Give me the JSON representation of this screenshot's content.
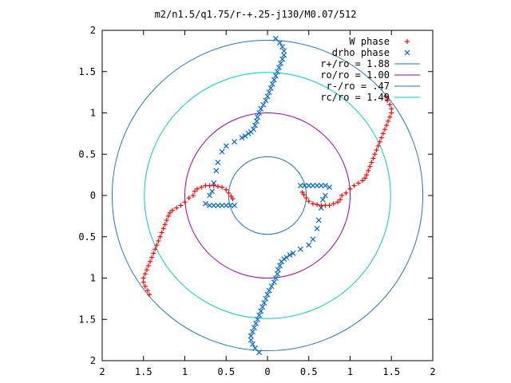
{
  "chart_data": {
    "type": "scatter",
    "title": "m2/n1.5/q1.75/r-+.25-j130/M0.07/512",
    "xlabel": "",
    "ylabel": "",
    "xlim": [
      -2,
      2
    ],
    "ylim": [
      -2,
      2
    ],
    "x_tick_values": [
      -2,
      -1.5,
      -1,
      -0.5,
      0,
      0.5,
      1,
      1.5,
      2
    ],
    "x_tick_labels": [
      "2",
      "1.5",
      "1",
      "0.5",
      "0",
      "0.5",
      "1",
      "1.5",
      "2"
    ],
    "y_tick_values": [
      2,
      1.5,
      1,
      0.5,
      0,
      -0.5,
      -1,
      -1.5,
      -2
    ],
    "y_tick_labels": [
      "2",
      "1.5",
      "1",
      "0.5",
      "0",
      "0.5",
      "1",
      "1.5",
      "2"
    ],
    "grid": false,
    "legend_position": "top-right",
    "series": [
      {
        "name": "W phase",
        "marker": "plus",
        "color": "#ff0000",
        "points": [
          [
            -0.9,
            0.0
          ],
          [
            -0.88,
            0.05
          ],
          [
            -0.85,
            0.08
          ],
          [
            -0.8,
            0.1
          ],
          [
            -0.75,
            0.12
          ],
          [
            -0.7,
            0.12
          ],
          [
            -0.65,
            0.12
          ],
          [
            -0.6,
            0.11
          ],
          [
            -0.55,
            0.1
          ],
          [
            -0.5,
            0.07
          ],
          [
            -0.47,
            0.03
          ],
          [
            -0.44,
            -0.01
          ],
          [
            -0.42,
            -0.04
          ],
          [
            -0.95,
            -0.03
          ],
          [
            -1.0,
            -0.08
          ],
          [
            -1.05,
            -0.12
          ],
          [
            -1.1,
            -0.15
          ],
          [
            -1.15,
            -0.18
          ],
          [
            -1.18,
            -0.21
          ],
          [
            -1.2,
            -0.25
          ],
          [
            -1.22,
            -0.3
          ],
          [
            -1.24,
            -0.35
          ],
          [
            -1.26,
            -0.4
          ],
          [
            -1.28,
            -0.45
          ],
          [
            -1.3,
            -0.5
          ],
          [
            -1.32,
            -0.55
          ],
          [
            -1.34,
            -0.6
          ],
          [
            -1.36,
            -0.65
          ],
          [
            -1.38,
            -0.7
          ],
          [
            -1.4,
            -0.75
          ],
          [
            -1.42,
            -0.8
          ],
          [
            -1.44,
            -0.85
          ],
          [
            -1.46,
            -0.9
          ],
          [
            -1.48,
            -0.95
          ],
          [
            -1.5,
            -1.0
          ],
          [
            -1.5,
            -1.05
          ],
          [
            -1.48,
            -1.1
          ],
          [
            -1.45,
            -1.15
          ],
          [
            -1.43,
            -1.2
          ],
          [
            0.9,
            0.0
          ],
          [
            0.88,
            -0.05
          ],
          [
            0.85,
            -0.08
          ],
          [
            0.8,
            -0.1
          ],
          [
            0.75,
            -0.12
          ],
          [
            0.7,
            -0.12
          ],
          [
            0.65,
            -0.12
          ],
          [
            0.6,
            -0.11
          ],
          [
            0.55,
            -0.1
          ],
          [
            0.5,
            -0.07
          ],
          [
            0.47,
            -0.03
          ],
          [
            0.44,
            0.01
          ],
          [
            0.42,
            0.04
          ],
          [
            0.95,
            0.03
          ],
          [
            1.0,
            0.08
          ],
          [
            1.05,
            0.12
          ],
          [
            1.1,
            0.15
          ],
          [
            1.15,
            0.18
          ],
          [
            1.18,
            0.21
          ],
          [
            1.2,
            0.25
          ],
          [
            1.22,
            0.3
          ],
          [
            1.24,
            0.35
          ],
          [
            1.26,
            0.4
          ],
          [
            1.28,
            0.45
          ],
          [
            1.3,
            0.5
          ],
          [
            1.32,
            0.55
          ],
          [
            1.34,
            0.6
          ],
          [
            1.36,
            0.65
          ],
          [
            1.38,
            0.7
          ],
          [
            1.4,
            0.75
          ],
          [
            1.42,
            0.8
          ],
          [
            1.44,
            0.85
          ],
          [
            1.46,
            0.9
          ],
          [
            1.48,
            0.95
          ],
          [
            1.5,
            1.0
          ],
          [
            1.5,
            1.05
          ],
          [
            1.48,
            1.1
          ],
          [
            1.45,
            1.15
          ],
          [
            1.43,
            1.2
          ]
        ]
      },
      {
        "name": "drho phase",
        "marker": "x",
        "color": "#0066cc",
        "points": [
          [
            0.1,
            1.9
          ],
          [
            0.15,
            1.85
          ],
          [
            0.18,
            1.8
          ],
          [
            0.2,
            1.75
          ],
          [
            0.2,
            1.7
          ],
          [
            0.18,
            1.65
          ],
          [
            0.16,
            1.6
          ],
          [
            0.14,
            1.55
          ],
          [
            0.12,
            1.5
          ],
          [
            0.1,
            1.45
          ],
          [
            0.08,
            1.4
          ],
          [
            0.06,
            1.35
          ],
          [
            0.04,
            1.3
          ],
          [
            0.02,
            1.25
          ],
          [
            0.0,
            1.2
          ],
          [
            -0.02,
            1.15
          ],
          [
            -0.05,
            1.1
          ],
          [
            -0.08,
            1.05
          ],
          [
            -0.1,
            1.0
          ],
          [
            -0.12,
            0.95
          ],
          [
            -0.13,
            0.9
          ],
          [
            -0.15,
            0.85
          ],
          [
            -0.17,
            0.8
          ],
          [
            -0.2,
            0.77
          ],
          [
            -0.23,
            0.75
          ],
          [
            -0.27,
            0.72
          ],
          [
            -0.31,
            0.7
          ],
          [
            -0.4,
            0.65
          ],
          [
            -0.5,
            0.6
          ],
          [
            -0.55,
            0.53
          ],
          [
            -0.6,
            0.4
          ],
          [
            -0.62,
            0.3
          ],
          [
            -0.65,
            0.15
          ],
          [
            -0.67,
            0.05
          ],
          [
            -0.7,
            0.0
          ],
          [
            -0.75,
            -0.1
          ],
          [
            -0.7,
            -0.12
          ],
          [
            -0.65,
            -0.12
          ],
          [
            -0.6,
            -0.12
          ],
          [
            -0.55,
            -0.12
          ],
          [
            -0.5,
            -0.12
          ],
          [
            -0.45,
            -0.12
          ],
          [
            -0.4,
            -0.12
          ],
          [
            -0.1,
            -1.9
          ],
          [
            -0.15,
            -1.85
          ],
          [
            -0.18,
            -1.8
          ],
          [
            -0.2,
            -1.75
          ],
          [
            -0.2,
            -1.7
          ],
          [
            -0.18,
            -1.65
          ],
          [
            -0.16,
            -1.6
          ],
          [
            -0.14,
            -1.55
          ],
          [
            -0.12,
            -1.5
          ],
          [
            -0.1,
            -1.45
          ],
          [
            -0.08,
            -1.4
          ],
          [
            -0.06,
            -1.35
          ],
          [
            -0.04,
            -1.3
          ],
          [
            -0.02,
            -1.25
          ],
          [
            0.0,
            -1.2
          ],
          [
            0.02,
            -1.15
          ],
          [
            0.05,
            -1.1
          ],
          [
            0.08,
            -1.05
          ],
          [
            0.1,
            -1.0
          ],
          [
            0.12,
            -0.95
          ],
          [
            0.13,
            -0.9
          ],
          [
            0.15,
            -0.85
          ],
          [
            0.17,
            -0.8
          ],
          [
            0.2,
            -0.77
          ],
          [
            0.23,
            -0.75
          ],
          [
            0.27,
            -0.72
          ],
          [
            0.31,
            -0.7
          ],
          [
            0.4,
            -0.65
          ],
          [
            0.5,
            -0.6
          ],
          [
            0.55,
            -0.53
          ],
          [
            0.6,
            -0.4
          ],
          [
            0.62,
            -0.3
          ],
          [
            0.65,
            -0.15
          ],
          [
            0.67,
            -0.05
          ],
          [
            0.7,
            0.0
          ],
          [
            0.75,
            0.1
          ],
          [
            0.7,
            0.12
          ],
          [
            0.65,
            0.12
          ],
          [
            0.6,
            0.12
          ],
          [
            0.55,
            0.12
          ],
          [
            0.5,
            0.12
          ],
          [
            0.45,
            0.12
          ],
          [
            0.4,
            0.12
          ]
        ]
      }
    ],
    "circles": [
      {
        "name": "r+/ro = 1.88",
        "radius": 1.88,
        "color": "#1f77b4"
      },
      {
        "name": "ro/ro = 1.00",
        "radius": 1.0,
        "color": "#9900aa"
      },
      {
        "name": "r-/ro = .47",
        "radius": 0.47,
        "color": "#1f77b4"
      },
      {
        "name": "rc/ro = 1.49",
        "radius": 1.49,
        "color": "#00cccc"
      }
    ],
    "legend_entries": [
      {
        "label": "W phase",
        "style": "plus",
        "color": "#ff0000"
      },
      {
        "label": "drho phase",
        "style": "x",
        "color": "#0066cc"
      },
      {
        "label": "r+/ro = 1.88",
        "style": "line",
        "color": "#1f77b4"
      },
      {
        "label": "ro/ro = 1.00",
        "style": "line",
        "color": "#9900aa"
      },
      {
        "label": "r-/ro =  .47",
        "style": "line",
        "color": "#1f77b4"
      },
      {
        "label": "rc/ro = 1.49",
        "style": "line",
        "color": "#00cccc"
      }
    ]
  }
}
